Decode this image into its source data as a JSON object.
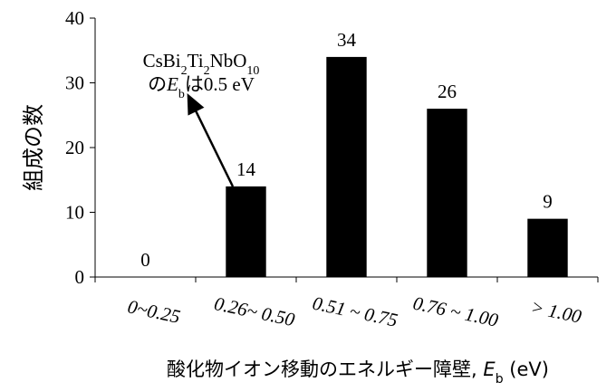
{
  "chart_data": {
    "type": "bar",
    "categories": [
      "0~0.25",
      "0.26~ 0.50",
      "0.51 ~ 0.75",
      "0.76 ~ 1.00",
      "> 1.00"
    ],
    "values": [
      0,
      14,
      34,
      26,
      9
    ],
    "color": "#000000",
    "ylim": [
      0,
      40
    ],
    "yticks": [
      0,
      10,
      20,
      30,
      40
    ],
    "y_label": "組成の数",
    "x_label": [
      {
        "text": "酸化物イオン移動のエネルギー障壁, "
      },
      {
        "text": "E",
        "italic": true
      },
      {
        "text": "b",
        "sub": true
      },
      {
        "text": " (eV)"
      }
    ],
    "annotation": [
      [
        {
          "text": "CsBi"
        },
        {
          "text": "2",
          "sub": true
        },
        {
          "text": "Ti"
        },
        {
          "text": "2",
          "sub": true
        },
        {
          "text": "NbO"
        },
        {
          "text": "10",
          "sub": true
        }
      ],
      [
        {
          "text": "の"
        },
        {
          "text": "E",
          "italic": true
        },
        {
          "text": "b",
          "sub": true
        },
        {
          "text": "は0.5 eV"
        }
      ]
    ]
  }
}
